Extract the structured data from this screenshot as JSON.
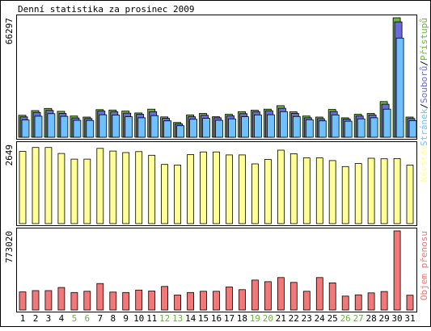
{
  "title": "Denní statistika za prosinec 2009",
  "colors": {
    "frame": "#000000",
    "hits": "#6cb33f",
    "files": "#6a6ad8",
    "pages": "#6ec0ff",
    "visits": "#ffff99",
    "kbytes": "#f07878",
    "weekend_label": "#6cb33f",
    "weekday_label": "#000000"
  },
  "chart_data": [
    {
      "type": "bar",
      "name": "pristupy-soubory-stranky",
      "ylabel": "66297",
      "ymax": 66297,
      "legend": [
        "Stránek",
        "/",
        "Souborů",
        "/",
        "Přístupů"
      ],
      "legend_colors": [
        "#6ec0ff",
        "#000000",
        "#6a6ad8",
        "#000000",
        "#6cb33f"
      ],
      "categories": [
        "1",
        "2",
        "3",
        "4",
        "5",
        "6",
        "7",
        "8",
        "9",
        "10",
        "11",
        "12",
        "13",
        "14",
        "15",
        "16",
        "17",
        "18",
        "19",
        "20",
        "21",
        "22",
        "23",
        "24",
        "25",
        "26",
        "27",
        "28",
        "29",
        "30",
        "31"
      ],
      "series": [
        {
          "name": "Přístupů",
          "values": [
            12200,
            14800,
            16000,
            14400,
            11800,
            11200,
            15300,
            15100,
            14500,
            13500,
            15600,
            11300,
            8200,
            12400,
            13200,
            11400,
            12700,
            14200,
            15000,
            15600,
            17500,
            14100,
            11800,
            11200,
            15400,
            10800,
            12700,
            13200,
            19800,
            66297,
            11200
          ]
        },
        {
          "name": "Souborů",
          "values": [
            11300,
            13800,
            14900,
            13200,
            10700,
            10400,
            14500,
            14100,
            13400,
            12700,
            14200,
            10500,
            7500,
            11400,
            12200,
            10800,
            11900,
            13100,
            14100,
            14700,
            16100,
            13200,
            10800,
            10300,
            14300,
            10100,
            11800,
            12300,
            18300,
            64000,
            10400
          ]
        },
        {
          "name": "Stránek",
          "values": [
            9600,
            11700,
            13100,
            11600,
            9400,
            9300,
            12500,
            12300,
            11400,
            10800,
            12000,
            9100,
            6400,
            10000,
            10500,
            9400,
            10200,
            11400,
            12400,
            12500,
            14200,
            11500,
            9700,
            9100,
            12400,
            8900,
            10200,
            10800,
            15600,
            55000,
            9200
          ]
        }
      ]
    },
    {
      "type": "bar",
      "name": "navstevy",
      "ylabel": "2649",
      "ymax": 2649,
      "legend": [
        "Návštěv"
      ],
      "legend_colors": [
        "#ffff99"
      ],
      "categories": [
        "1",
        "2",
        "3",
        "4",
        "5",
        "6",
        "7",
        "8",
        "9",
        "10",
        "11",
        "12",
        "13",
        "14",
        "15",
        "16",
        "17",
        "18",
        "19",
        "20",
        "21",
        "22",
        "23",
        "24",
        "25",
        "26",
        "27",
        "28",
        "29",
        "30",
        "31"
      ],
      "series": [
        {
          "name": "Návštěv",
          "values": [
            2420,
            2550,
            2550,
            2350,
            2160,
            2160,
            2520,
            2430,
            2380,
            2410,
            2290,
            1980,
            1960,
            2310,
            2400,
            2400,
            2300,
            2300,
            2000,
            2150,
            2460,
            2340,
            2200,
            2200,
            2110,
            1910,
            2010,
            2190,
            2170,
            2180,
            1960
          ]
        }
      ]
    },
    {
      "type": "bar",
      "name": "objem-prenosu",
      "ylabel": "773020",
      "ymax": 773020,
      "legend": [
        "Objem přenosu"
      ],
      "legend_colors": [
        "#f07878"
      ],
      "categories": [
        "1",
        "2",
        "3",
        "4",
        "5",
        "6",
        "7",
        "8",
        "9",
        "10",
        "11",
        "12",
        "13",
        "14",
        "15",
        "16",
        "17",
        "18",
        "19",
        "20",
        "21",
        "22",
        "23",
        "24",
        "25",
        "26",
        "27",
        "28",
        "29",
        "30",
        "31"
      ],
      "series": [
        {
          "name": "Objem přenosu",
          "values": [
            177000,
            189000,
            189000,
            220000,
            171000,
            183000,
            259000,
            175000,
            171000,
            195000,
            185000,
            230000,
            146000,
            171000,
            183000,
            183000,
            225000,
            199000,
            293000,
            277000,
            317000,
            270000,
            183000,
            317000,
            265000,
            136000,
            148000,
            167000,
            181000,
            773020,
            144000
          ]
        }
      ]
    }
  ],
  "day_labels": [
    "1",
    "2",
    "3",
    "4",
    "5",
    "6",
    "7",
    "8",
    "9",
    "10",
    "11",
    "12",
    "13",
    "14",
    "15",
    "16",
    "17",
    "18",
    "19",
    "20",
    "21",
    "22",
    "23",
    "24",
    "25",
    "26",
    "27",
    "28",
    "29",
    "30",
    "31"
  ],
  "weekend_days": [
    5,
    6,
    12,
    13,
    19,
    20,
    26,
    27
  ]
}
